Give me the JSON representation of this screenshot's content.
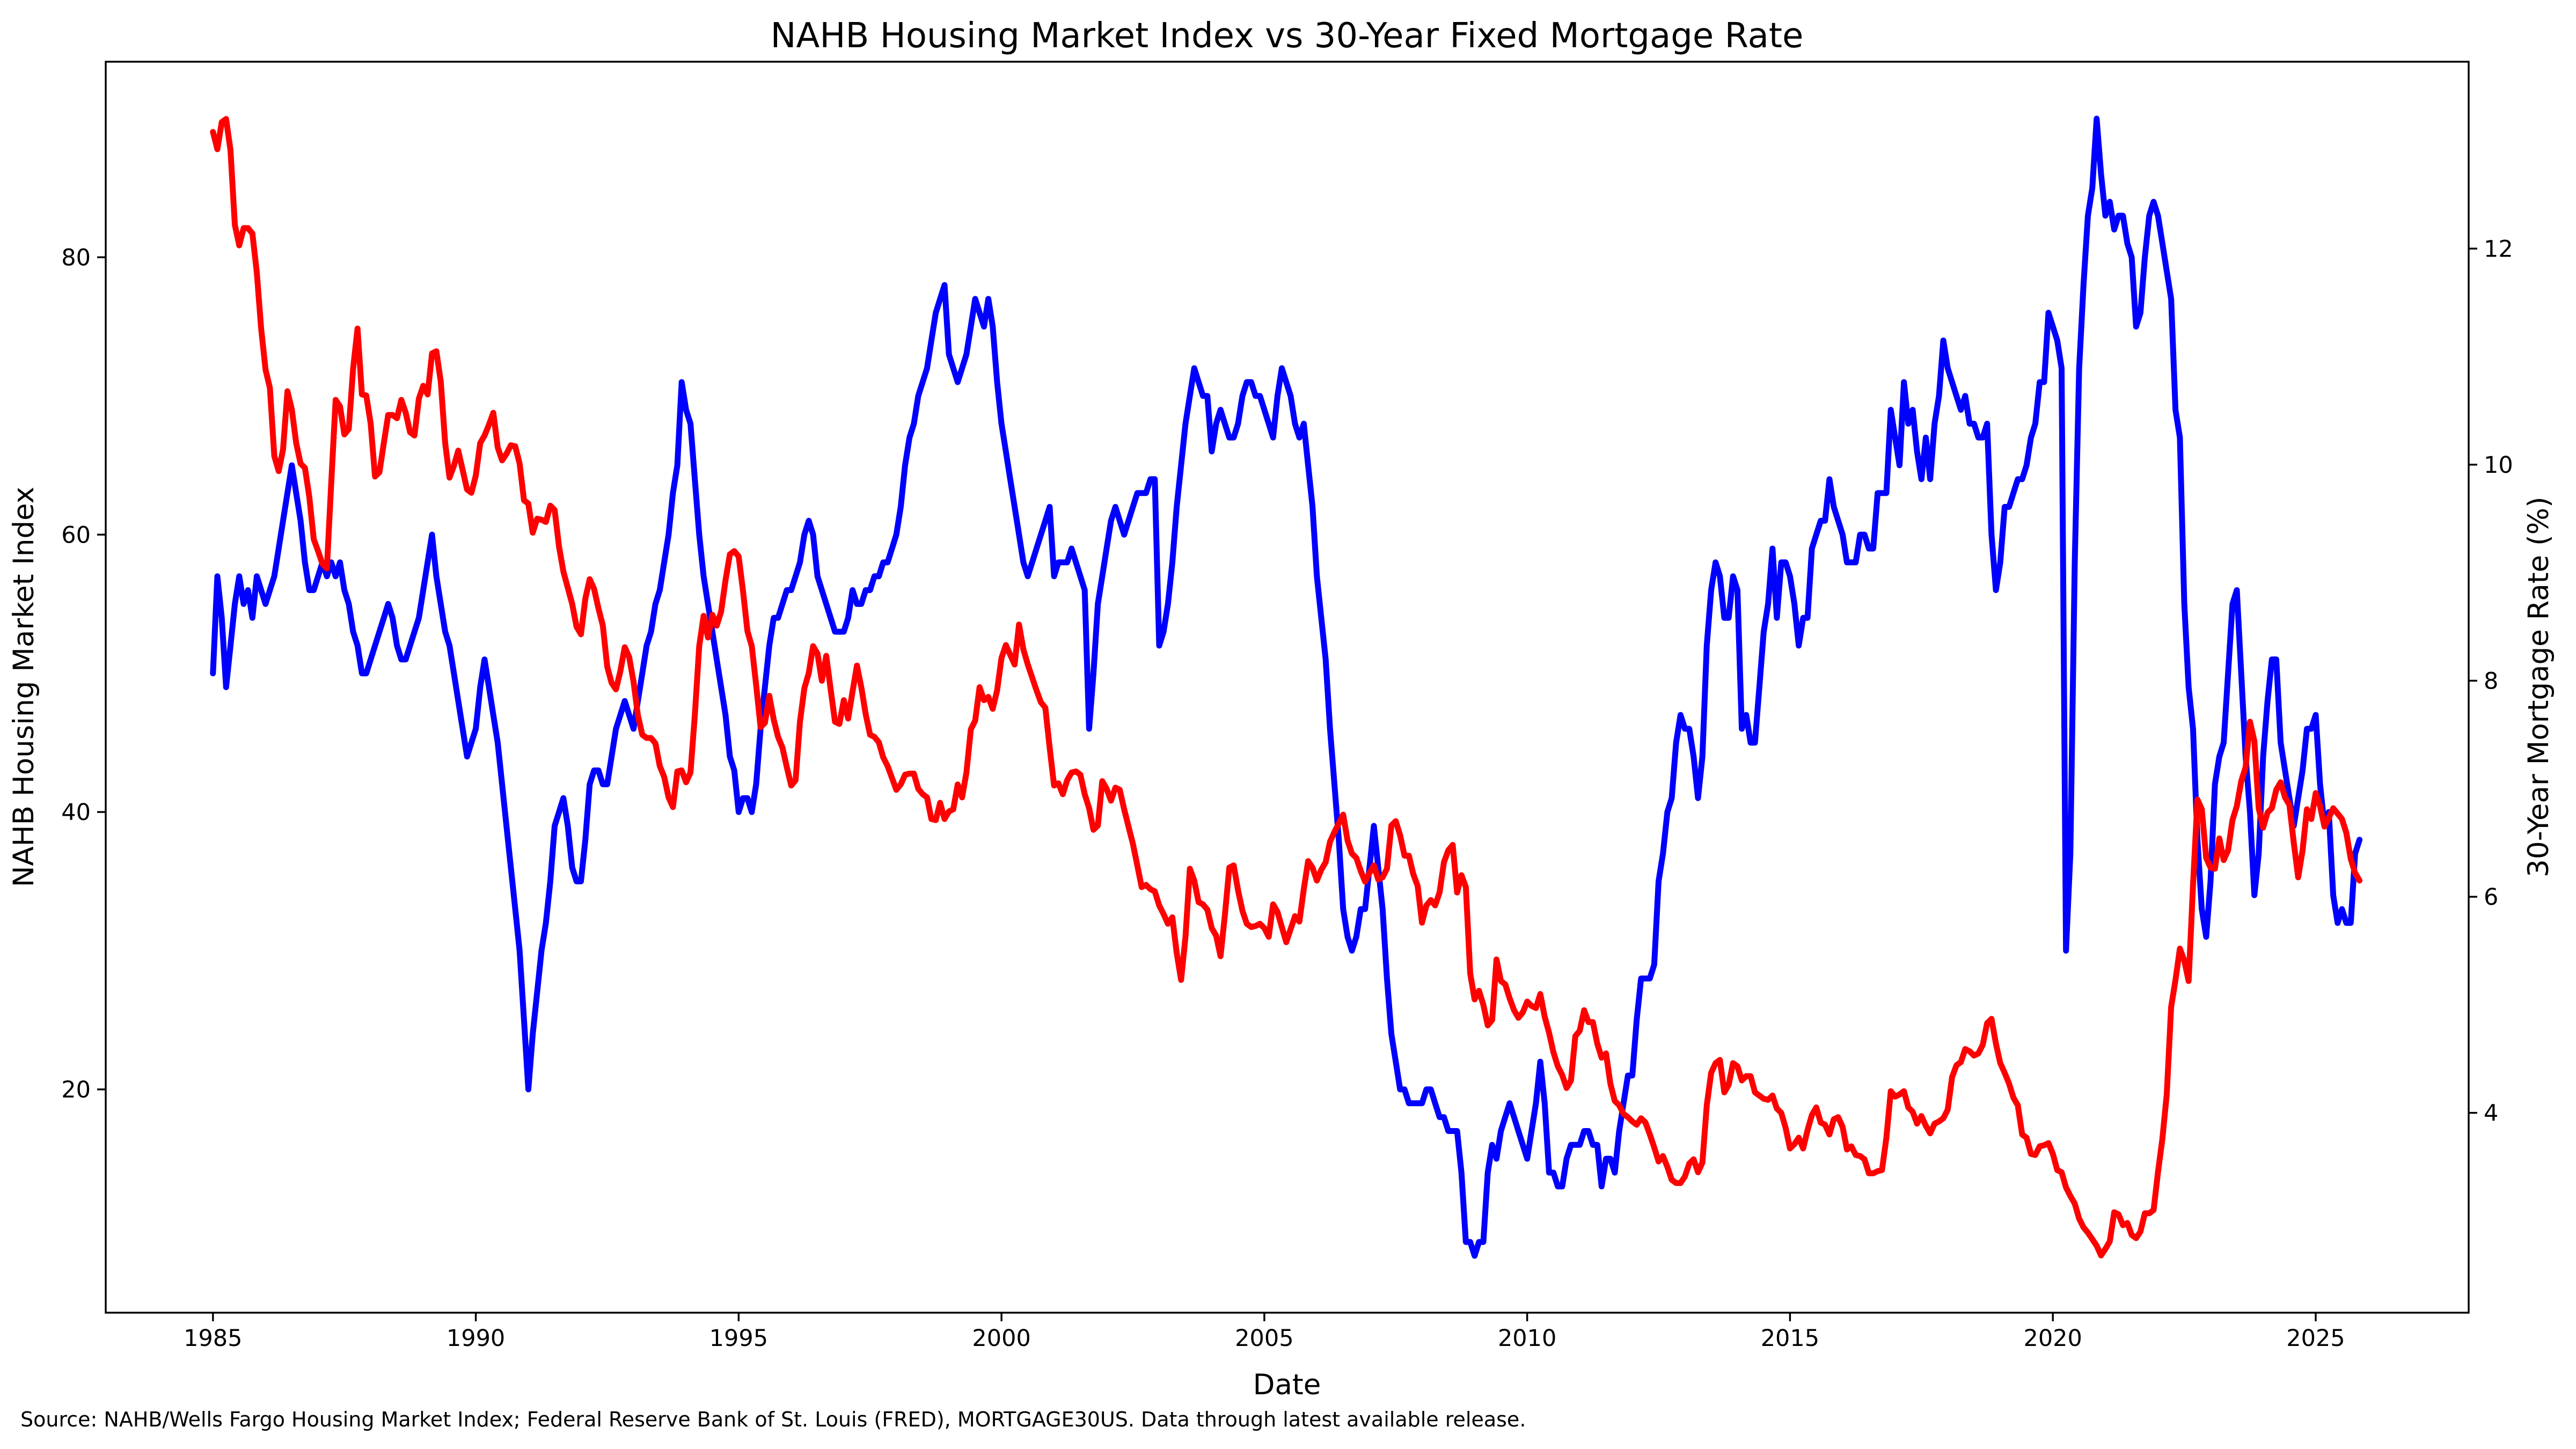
{
  "title": "NAHB Housing Market Index vs 30-Year Fixed Mortgage Rate",
  "source_note": "Source: NAHB/Wells Fargo Housing Market Index; Federal Reserve Bank of St. Louis (FRED), MORTGAGE30US. Data through latest available release.",
  "colors": {
    "hmi_line": "#0000ff",
    "rate_line": "#ff0000",
    "axis": "#000000",
    "background": "#ffffff"
  },
  "chart_data": {
    "type": "line",
    "title": "NAHB Housing Market Index vs 30-Year Fixed Mortgage Rate",
    "xlabel": "Date",
    "ylabel_left": "NAHB Housing Market Index",
    "ylabel_right": "30-Year Mortgage Rate (%)",
    "legend": "none",
    "grid": false,
    "x_axis": {
      "label": "Date",
      "ticks": [
        1985,
        1990,
        1995,
        2000,
        2005,
        2010,
        2015,
        2020,
        2025
      ],
      "range": [
        1982.96,
        2027.91
      ]
    },
    "left_axis": {
      "label": "NAHB Housing Market Index",
      "ticks": [
        20,
        40,
        60,
        80
      ],
      "range": [
        3.9,
        94.1
      ]
    },
    "right_axis": {
      "label": "30-Year Mortgage Rate (%)",
      "ticks": [
        4,
        6,
        8,
        10,
        12
      ],
      "range": [
        2.15,
        13.73
      ]
    },
    "series": [
      {
        "name": "NAHB Housing Market Index",
        "axis": "left",
        "color": "#0000ff",
        "start_year": 1985.0,
        "step_years": 0.0833333,
        "values": [
          50,
          57,
          54,
          49,
          52,
          55,
          57,
          55,
          56,
          54,
          57,
          56,
          55,
          56,
          57,
          59,
          61,
          63,
          65,
          63,
          61,
          58,
          56,
          56,
          57,
          58,
          57,
          58,
          57,
          58,
          56,
          55,
          53,
          52,
          50,
          50,
          51,
          52,
          53,
          54,
          55,
          54,
          52,
          51,
          51,
          52,
          53,
          54,
          56,
          58,
          60,
          57,
          55,
          53,
          52,
          50,
          48,
          46,
          44,
          45,
          46,
          49,
          51,
          49,
          47,
          45,
          42,
          39,
          36,
          33,
          30,
          25,
          20,
          24,
          27,
          30,
          32,
          35,
          39,
          40,
          41,
          39,
          36,
          35,
          35,
          38,
          42,
          43,
          43,
          42,
          42,
          44,
          46,
          47,
          48,
          47,
          46,
          48,
          50,
          52,
          53,
          55,
          56,
          58,
          60,
          63,
          65,
          71,
          69,
          68,
          64,
          60,
          57,
          55,
          53,
          51,
          49,
          47,
          44,
          43,
          40,
          41,
          41,
          40,
          42,
          46,
          49,
          52,
          54,
          54,
          55,
          56,
          56,
          57,
          58,
          60,
          61,
          60,
          57,
          56,
          55,
          54,
          53,
          53,
          53,
          54,
          56,
          55,
          55,
          56,
          56,
          57,
          57,
          58,
          58,
          59,
          60,
          62,
          65,
          67,
          68,
          70,
          71,
          72,
          74,
          76,
          77,
          78,
          73,
          72,
          71,
          72,
          73,
          75,
          77,
          76,
          75,
          77,
          75,
          71,
          68,
          66,
          64,
          62,
          60,
          58,
          57,
          58,
          59,
          60,
          61,
          62,
          57,
          58,
          58,
          58,
          59,
          58,
          57,
          56,
          46,
          50,
          55,
          57,
          59,
          61,
          62,
          61,
          60,
          61,
          62,
          63,
          63,
          63,
          64,
          64,
          52,
          53,
          55,
          58,
          62,
          65,
          68,
          70,
          72,
          71,
          70,
          70,
          66,
          68,
          69,
          68,
          67,
          67,
          68,
          70,
          71,
          71,
          70,
          70,
          69,
          68,
          67,
          70,
          72,
          71,
          70,
          68,
          67,
          68,
          65,
          62,
          57,
          54,
          51,
          46,
          42,
          38,
          33,
          31,
          30,
          31,
          33,
          33,
          36,
          39,
          36,
          33,
          28,
          24,
          22,
          20,
          20,
          19,
          19,
          19,
          19,
          20,
          20,
          19,
          18,
          18,
          17,
          17,
          17,
          14,
          9,
          9,
          8,
          9,
          9,
          14,
          16,
          15,
          17,
          18,
          19,
          18,
          17,
          16,
          15,
          17,
          19,
          22,
          19,
          14,
          14,
          13,
          13,
          15,
          16,
          16,
          16,
          17,
          17,
          16,
          16,
          13,
          15,
          15,
          14,
          17,
          19,
          21,
          21,
          25,
          28,
          28,
          28,
          29,
          35,
          37,
          40,
          41,
          45,
          47,
          46,
          46,
          44,
          41,
          44,
          52,
          56,
          58,
          57,
          54,
          54,
          57,
          56,
          46,
          47,
          45,
          45,
          49,
          53,
          55,
          59,
          54,
          58,
          58,
          57,
          55,
          52,
          54,
          54,
          59,
          60,
          61,
          61,
          64,
          62,
          61,
          60,
          58,
          58,
          58,
          60,
          60,
          59,
          59,
          63,
          63,
          63,
          69,
          67,
          65,
          71,
          68,
          69,
          66,
          64,
          67,
          64,
          68,
          70,
          74,
          72,
          71,
          70,
          69,
          70,
          68,
          68,
          67,
          67,
          68,
          60,
          56,
          58,
          62,
          62,
          63,
          64,
          64,
          65,
          67,
          68,
          71,
          71,
          76,
          75,
          74,
          72,
          30,
          37,
          58,
          72,
          78,
          83,
          85,
          90,
          86,
          83,
          84,
          82,
          83,
          83,
          81,
          80,
          75,
          76,
          80,
          83,
          84,
          83,
          81,
          79,
          77,
          69,
          67,
          55,
          49,
          46,
          38,
          33,
          31,
          35,
          42,
          44,
          45,
          50,
          55,
          56,
          50,
          44,
          40,
          34,
          37,
          44,
          48,
          51,
          51,
          45,
          43,
          41,
          39,
          41,
          43,
          46,
          46,
          47,
          42,
          39,
          40,
          34,
          32,
          33,
          32,
          32,
          37,
          38
        ]
      },
      {
        "name": "30-Year Fixed Mortgage Rate",
        "axis": "right",
        "color": "#ff0000",
        "start_year": 1985.0,
        "step_years": 0.0833333,
        "values": [
          13.08,
          12.92,
          13.17,
          13.2,
          12.91,
          12.22,
          12.03,
          12.19,
          12.19,
          12.14,
          11.78,
          11.26,
          10.88,
          10.71,
          10.08,
          9.94,
          10.14,
          10.68,
          10.51,
          10.2,
          10.01,
          9.97,
          9.7,
          9.31,
          9.2,
          9.08,
          9.04,
          9.83,
          10.6,
          10.54,
          10.28,
          10.33,
          10.89,
          11.26,
          10.65,
          10.64,
          10.38,
          9.89,
          9.93,
          10.2,
          10.46,
          10.46,
          10.43,
          10.6,
          10.48,
          10.3,
          10.27,
          10.61,
          10.73,
          10.65,
          11.03,
          11.05,
          10.77,
          10.2,
          9.88,
          9.99,
          10.13,
          9.95,
          9.77,
          9.74,
          9.9,
          10.2,
          10.27,
          10.37,
          10.48,
          10.16,
          10.04,
          10.1,
          10.18,
          10.17,
          10.01,
          9.67,
          9.64,
          9.37,
          9.5,
          9.49,
          9.47,
          9.62,
          9.58,
          9.24,
          9.01,
          8.86,
          8.71,
          8.5,
          8.43,
          8.76,
          8.94,
          8.85,
          8.67,
          8.51,
          8.13,
          7.98,
          7.92,
          8.09,
          8.31,
          8.22,
          7.99,
          7.68,
          7.5,
          7.47,
          7.47,
          7.42,
          7.21,
          7.11,
          6.92,
          6.83,
          7.16,
          7.17,
          7.06,
          7.15,
          7.68,
          8.32,
          8.6,
          8.4,
          8.61,
          8.51,
          8.64,
          8.93,
          9.17,
          9.2,
          9.15,
          8.83,
          8.46,
          8.32,
          7.96,
          7.57,
          7.61,
          7.86,
          7.64,
          7.48,
          7.38,
          7.2,
          7.03,
          7.08,
          7.62,
          7.93,
          8.07,
          8.32,
          8.25,
          8.0,
          8.23,
          7.92,
          7.62,
          7.6,
          7.82,
          7.65,
          7.9,
          8.14,
          7.94,
          7.69,
          7.5,
          7.48,
          7.43,
          7.29,
          7.21,
          7.1,
          6.99,
          7.04,
          7.13,
          7.14,
          7.14,
          7.0,
          6.95,
          6.92,
          6.72,
          6.71,
          6.87,
          6.72,
          6.79,
          6.81,
          7.04,
          6.92,
          7.15,
          7.55,
          7.63,
          7.94,
          7.82,
          7.85,
          7.74,
          7.91,
          8.21,
          8.33,
          8.24,
          8.15,
          8.52,
          8.29,
          8.15,
          8.03,
          7.91,
          7.8,
          7.75,
          7.38,
          7.03,
          7.05,
          6.95,
          7.08,
          7.15,
          7.16,
          7.13,
          6.95,
          6.82,
          6.62,
          6.66,
          7.07,
          7.0,
          6.89,
          7.01,
          6.99,
          6.81,
          6.65,
          6.49,
          6.29,
          6.09,
          6.11,
          6.07,
          6.05,
          5.92,
          5.84,
          5.75,
          5.81,
          5.48,
          5.23,
          5.63,
          6.26,
          6.15,
          5.95,
          5.93,
          5.88,
          5.71,
          5.64,
          5.45,
          5.83,
          6.27,
          6.29,
          6.06,
          5.87,
          5.75,
          5.72,
          5.73,
          5.75,
          5.71,
          5.63,
          5.93,
          5.86,
          5.72,
          5.58,
          5.7,
          5.82,
          5.77,
          6.07,
          6.33,
          6.27,
          6.15,
          6.25,
          6.32,
          6.51,
          6.6,
          6.68,
          6.76,
          6.52,
          6.4,
          6.36,
          6.24,
          6.14,
          6.22,
          6.29,
          6.16,
          6.18,
          6.26,
          6.66,
          6.7,
          6.57,
          6.38,
          6.38,
          6.21,
          6.1,
          5.76,
          5.92,
          5.97,
          5.92,
          6.04,
          6.32,
          6.43,
          6.48,
          6.04,
          6.2,
          6.09,
          5.29,
          5.05,
          5.13,
          5.0,
          4.81,
          4.86,
          5.42,
          5.22,
          5.19,
          5.06,
          4.95,
          4.88,
          4.93,
          5.03,
          4.99,
          4.97,
          5.1,
          4.89,
          4.74,
          4.56,
          4.43,
          4.35,
          4.23,
          4.3,
          4.71,
          4.76,
          4.95,
          4.84,
          4.84,
          4.64,
          4.51,
          4.55,
          4.27,
          4.11,
          4.07,
          3.99,
          3.96,
          3.92,
          3.89,
          3.95,
          3.91,
          3.8,
          3.68,
          3.55,
          3.6,
          3.5,
          3.38,
          3.35,
          3.35,
          3.41,
          3.53,
          3.57,
          3.45,
          3.54,
          4.07,
          4.37,
          4.46,
          4.49,
          4.19,
          4.26,
          4.46,
          4.43,
          4.3,
          4.34,
          4.34,
          4.19,
          4.16,
          4.13,
          4.12,
          4.16,
          4.04,
          4.0,
          3.86,
          3.67,
          3.71,
          3.77,
          3.67,
          3.84,
          3.98,
          4.05,
          3.91,
          3.89,
          3.8,
          3.94,
          3.96,
          3.87,
          3.66,
          3.69,
          3.61,
          3.6,
          3.57,
          3.44,
          3.44,
          3.46,
          3.47,
          3.77,
          4.2,
          4.15,
          4.17,
          4.2,
          4.05,
          4.01,
          3.9,
          3.97,
          3.88,
          3.81,
          3.9,
          3.92,
          3.95,
          4.03,
          4.33,
          4.44,
          4.47,
          4.59,
          4.57,
          4.53,
          4.55,
          4.63,
          4.83,
          4.87,
          4.64,
          4.46,
          4.37,
          4.27,
          4.14,
          4.07,
          3.8,
          3.77,
          3.62,
          3.61,
          3.69,
          3.7,
          3.72,
          3.62,
          3.47,
          3.45,
          3.31,
          3.23,
          3.16,
          3.02,
          2.94,
          2.89,
          2.83,
          2.77,
          2.68,
          2.74,
          2.81,
          3.08,
          3.06,
          2.96,
          2.98,
          2.87,
          2.84,
          2.9,
          3.07,
          3.07,
          3.1,
          3.45,
          3.76,
          4.17,
          4.98,
          5.23,
          5.52,
          5.41,
          5.22,
          6.11,
          6.9,
          6.81,
          6.36,
          6.27,
          6.26,
          6.54,
          6.34,
          6.43,
          6.71,
          6.84,
          7.07,
          7.2,
          7.62,
          7.44,
          6.82,
          6.64,
          6.78,
          6.82,
          6.99,
          7.06,
          6.92,
          6.85,
          6.5,
          6.18,
          6.43,
          6.81,
          6.72,
          6.96,
          6.84,
          6.65,
          6.73,
          6.82,
          6.77,
          6.72,
          6.59,
          6.35,
          6.22,
          6.15
        ]
      }
    ]
  }
}
